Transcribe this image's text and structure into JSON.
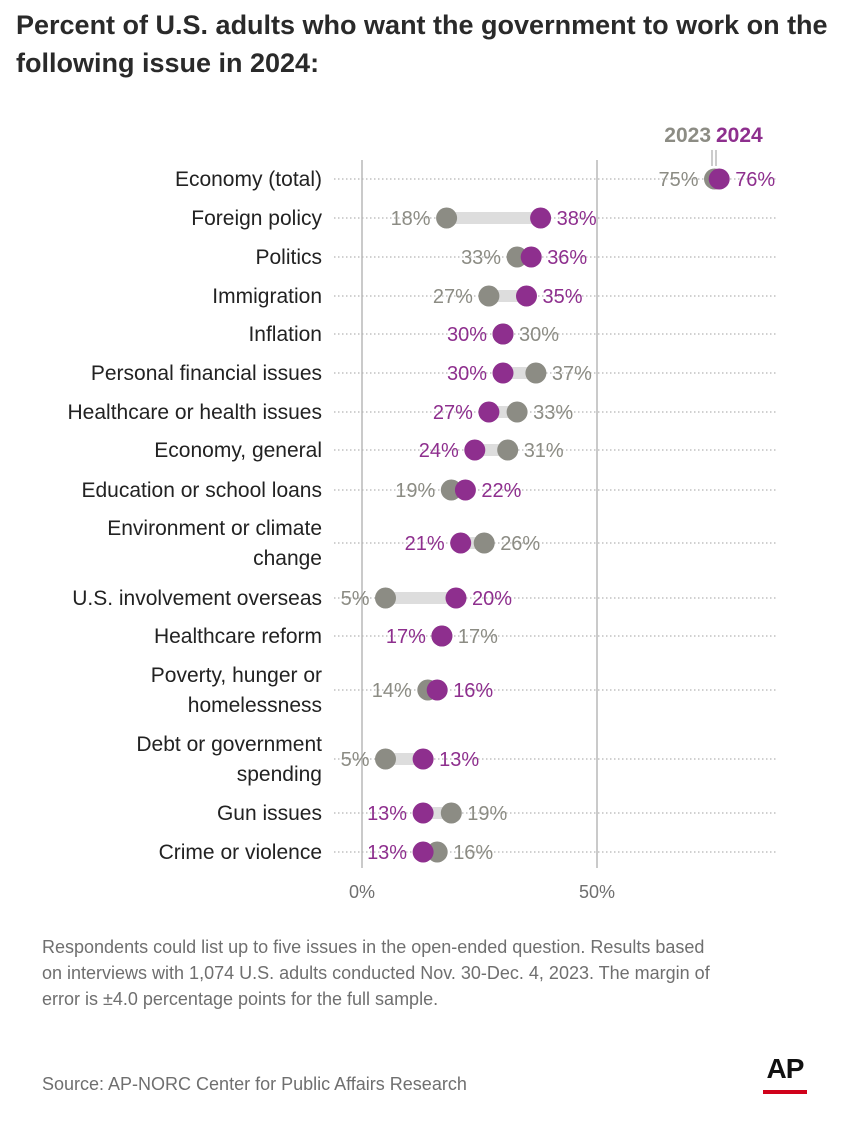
{
  "header": {
    "title": "Percent of U.S. adults who want the government to work on the following issue in 2024:"
  },
  "chart_data": {
    "type": "dot-plot",
    "title": "Percent of U.S. adults who want the government to work on the following issue in 2024:",
    "xlim": [
      0,
      50
    ],
    "x_ticks": [
      {
        "value": 0,
        "label": "0%"
      },
      {
        "value": 50,
        "label": "50%"
      }
    ],
    "legend": {
      "y2023": "2023",
      "y2024": "2024"
    },
    "colors": {
      "y2023": "#8c8c84",
      "y2024": "#8e2f8e",
      "connector": "#dddddd",
      "grid": "#b9b9b9"
    },
    "series": [
      {
        "name": "2023",
        "values": [
          75,
          18,
          33,
          27,
          30,
          37,
          33,
          31,
          19,
          26,
          5,
          17,
          14,
          5,
          19,
          16
        ]
      },
      {
        "name": "2024",
        "values": [
          76,
          38,
          36,
          35,
          30,
          30,
          27,
          24,
          22,
          21,
          20,
          17,
          16,
          13,
          13,
          13
        ]
      }
    ],
    "rows": [
      {
        "label": [
          "Economy (total)"
        ],
        "v2023": 75,
        "v2024": 76,
        "l2023": "75%",
        "l2024": "76%"
      },
      {
        "label": [
          "Foreign policy"
        ],
        "v2023": 18,
        "v2024": 38,
        "l2023": "18%",
        "l2024": "38%"
      },
      {
        "label": [
          "Politics"
        ],
        "v2023": 33,
        "v2024": 36,
        "l2023": "33%",
        "l2024": "36%"
      },
      {
        "label": [
          "Immigration"
        ],
        "v2023": 27,
        "v2024": 35,
        "l2023": "27%",
        "l2024": "35%"
      },
      {
        "label": [
          "Inflation"
        ],
        "v2023": 30,
        "v2024": 30,
        "l2023": "30%",
        "l2024": "30%"
      },
      {
        "label": [
          "Personal financial issues"
        ],
        "v2023": 37,
        "v2024": 30,
        "l2023": "37%",
        "l2024": "30%"
      },
      {
        "label": [
          "Healthcare or health issues"
        ],
        "v2023": 33,
        "v2024": 27,
        "l2023": "33%",
        "l2024": "27%"
      },
      {
        "label": [
          "Economy, general"
        ],
        "v2023": 31,
        "v2024": 24,
        "l2023": "31%",
        "l2024": "24%"
      },
      {
        "label": [
          "Education or school loans"
        ],
        "v2023": 19,
        "v2024": 22,
        "l2023": "19%",
        "l2024": "22%"
      },
      {
        "label": [
          "Environment or climate",
          "change"
        ],
        "v2023": 26,
        "v2024": 21,
        "l2023": "26%",
        "l2024": "21%"
      },
      {
        "label": [
          "U.S. involvement overseas"
        ],
        "v2023": 5,
        "v2024": 20,
        "l2023": "5%",
        "l2024": "20%"
      },
      {
        "label": [
          "Healthcare reform"
        ],
        "v2023": 17,
        "v2024": 17,
        "l2023": "17%",
        "l2024": "17%"
      },
      {
        "label": [
          "Poverty, hunger or",
          "homelessness"
        ],
        "v2023": 14,
        "v2024": 16,
        "l2023": "14%",
        "l2024": "16%"
      },
      {
        "label": [
          "Debt or government",
          "spending"
        ],
        "v2023": 5,
        "v2024": 13,
        "l2023": "5%",
        "l2024": "13%"
      },
      {
        "label": [
          "Gun issues"
        ],
        "v2023": 19,
        "v2024": 13,
        "l2023": "19%",
        "l2024": "13%"
      },
      {
        "label": [
          "Crime or violence"
        ],
        "v2023": 16,
        "v2024": 13,
        "l2023": "16%",
        "l2024": "13%"
      }
    ]
  },
  "footer": {
    "note": "Respondents could list up to five issues in the open-ended question. Results based on interviews with 1,074 U.S. adults conducted Nov. 30-Dec. 4, 2023. The margin of error is ±4.0 percentage points for the full sample.",
    "source": "Source: AP-NORC Center for Public Affairs Research",
    "logo": "AP"
  }
}
